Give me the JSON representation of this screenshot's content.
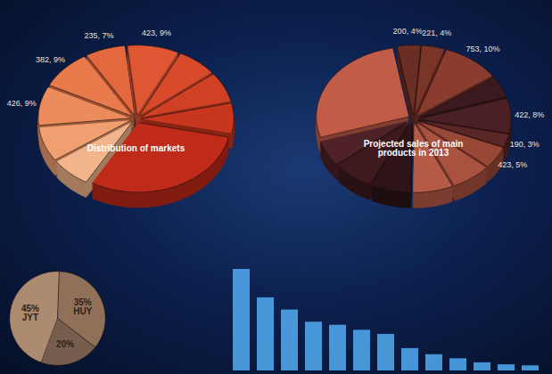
{
  "chart_data": [
    {
      "type": "pie",
      "title": "Distribution of markets",
      "categories": [
        null,
        null,
        null,
        null,
        null,
        null,
        null,
        null,
        null,
        null
      ],
      "values": [
        7,
        8,
        9,
        9,
        7,
        9,
        7,
        7,
        7,
        30
      ],
      "value_labels": [
        null,
        null,
        "426, 9%",
        "382, 9%",
        "235, 7%",
        "423, 9%",
        null,
        null,
        null,
        null
      ],
      "data_labels": true,
      "colors": [
        "#f2b48a",
        "#f0a070",
        "#ec8c5c",
        "#e87a4c",
        "#e4683e",
        "#de5632",
        "#d84a2a",
        "#d04024",
        "#c8361e",
        "#c02a18"
      ]
    },
    {
      "type": "pie",
      "title": "Projected sales of main products in 2013",
      "categories": [
        null,
        null,
        null,
        null,
        null,
        null,
        null,
        null,
        null,
        null,
        null,
        null,
        null
      ],
      "values": [
        4,
        4,
        10,
        5,
        8,
        3,
        5,
        7,
        7,
        7,
        7,
        6,
        27
      ],
      "value_labels": [
        "200, 4%",
        "221, 4%",
        "753, 10%",
        null,
        "422, 8%",
        "190, 3%",
        "423, 5%",
        null,
        null,
        null,
        null,
        null,
        null
      ],
      "data_labels": true,
      "colors": [
        "#6a2e24",
        "#7a3428",
        "#8a3c2e",
        "#3a1a1e",
        "#4a2024",
        "#5a2628",
        "#9a4836",
        "#aa5240",
        "#b45a46",
        "#2e1418",
        "#3e1a1e",
        "#4e2226",
        "#c05c48"
      ]
    },
    {
      "type": "pie",
      "categories": [
        "JYT",
        "HUY",
        null
      ],
      "values": [
        45,
        35,
        20
      ],
      "value_labels": [
        "45%",
        "35%",
        "20%"
      ],
      "data_labels": true,
      "colors": [
        "#c9a07a",
        "#a8805e",
        "#8a6a52"
      ]
    },
    {
      "type": "bar",
      "categories": [
        null,
        null,
        null,
        null,
        null,
        null,
        null,
        null,
        null,
        null,
        null,
        null,
        null
      ],
      "values": [
        100,
        72,
        60,
        48,
        45,
        40,
        36,
        22,
        16,
        12,
        8,
        6,
        5
      ],
      "color": "#3d9be6",
      "tick_labels": false
    }
  ]
}
